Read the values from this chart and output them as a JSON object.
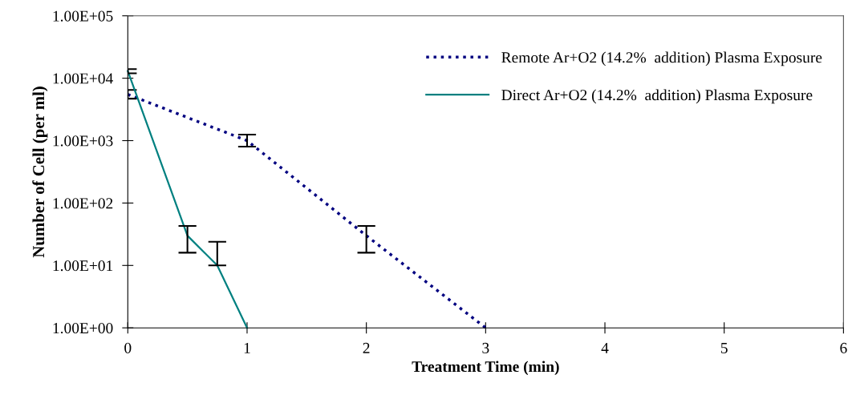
{
  "chart_data": {
    "type": "line",
    "xlabel": "Treatment Time (min)",
    "ylabel": "Number of Cell (per ml)",
    "log": "y",
    "xlim": [
      0,
      6
    ],
    "xticks": [
      0,
      1,
      2,
      3,
      4,
      5,
      6
    ],
    "ylim": [
      1,
      100000
    ],
    "yticks": [
      {
        "value": 1,
        "label": "1.00E+00"
      },
      {
        "value": 10,
        "label": "1.00E+01"
      },
      {
        "value": 100,
        "label": "1.00E+02"
      },
      {
        "value": 1000,
        "label": "1.00E+03"
      },
      {
        "value": 10000,
        "label": "1.00E+04"
      },
      {
        "value": 100000,
        "label": "1.00E+05"
      }
    ],
    "grid": false,
    "legend": "top right",
    "series": [
      {
        "name": "Remote Ar+O2 (14.2%  addition) Plasma Exposure",
        "color": "#000080",
        "line_style": "dotted",
        "x": [
          0,
          1,
          2,
          3
        ],
        "values": [
          5500,
          1000,
          30,
          1
        ],
        "errors": [
          [
            4700,
            6500
          ],
          [
            800,
            1250
          ],
          [
            16,
            43
          ],
          null
        ]
      },
      {
        "name": "Direct Ar+O2 (14.2%  addition) Plasma Exposure",
        "color": "#008080",
        "line_style": "solid",
        "x": [
          0,
          0.5,
          0.75,
          1
        ],
        "values": [
          13000,
          30,
          10,
          1
        ],
        "errors": [
          [
            12000,
            14000
          ],
          [
            16,
            43
          ],
          [
            10,
            24
          ],
          null
        ]
      }
    ]
  }
}
